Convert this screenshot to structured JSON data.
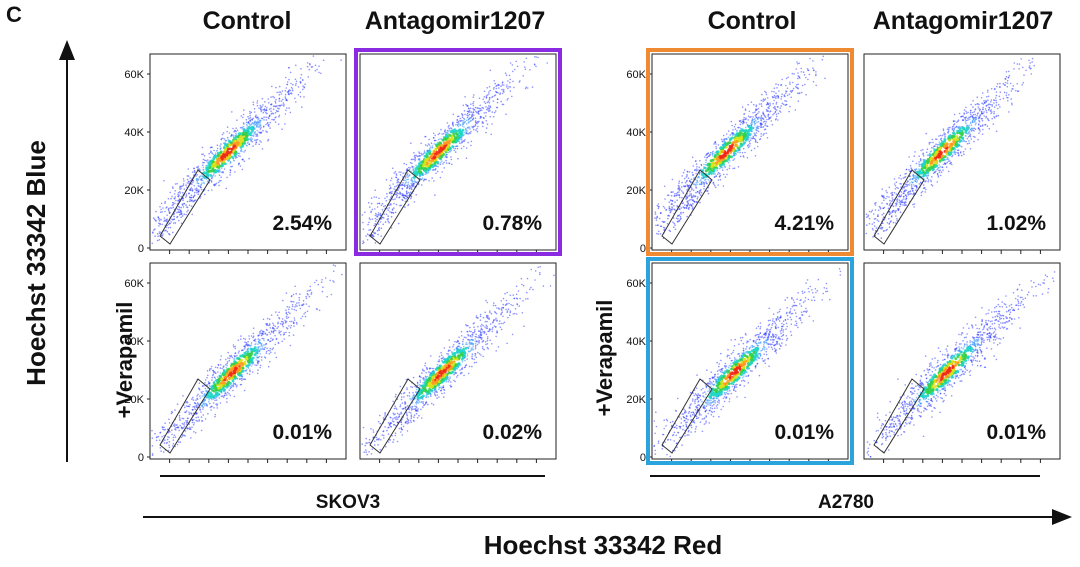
{
  "figure": {
    "panel_letter": "C",
    "y_axis_title": "Hoechst 33342 Blue",
    "x_axis_title": "Hoechst 33342 Red",
    "row_label": "+Verapamil",
    "colors": {
      "purple": "#8a2be2",
      "orange": "#ef8a33",
      "blue": "#2ba3dc"
    }
  },
  "chart_data": [
    {
      "type": "scatter",
      "cell_line": "SKOV3",
      "column_headers": [
        "Control",
        "Antagomir1207"
      ],
      "y_ticks": [
        "60K",
        "40K",
        "20K",
        "0"
      ],
      "ylim": [
        0,
        65000
      ],
      "panels": [
        {
          "row": "top",
          "condition": "Control",
          "verapamil": false,
          "side_population": "2.54%",
          "highlight": ""
        },
        {
          "row": "top",
          "condition": "Antagomir1207",
          "verapamil": false,
          "side_population": "0.78%",
          "highlight": "purple"
        },
        {
          "row": "bottom",
          "condition": "Control",
          "verapamil": true,
          "side_population": "0.01%",
          "highlight": ""
        },
        {
          "row": "bottom",
          "condition": "Antagomir1207",
          "verapamil": true,
          "side_population": "0.02%",
          "highlight": ""
        }
      ]
    },
    {
      "type": "scatter",
      "cell_line": "A2780",
      "column_headers": [
        "Control",
        "Antagomir1207"
      ],
      "y_ticks": [
        "60K",
        "40K",
        "20K",
        "0"
      ],
      "ylim": [
        0,
        65000
      ],
      "panels": [
        {
          "row": "top",
          "condition": "Control",
          "verapamil": false,
          "side_population": "4.21%",
          "highlight": "orange"
        },
        {
          "row": "top",
          "condition": "Antagomir1207",
          "verapamil": false,
          "side_population": "1.02%",
          "highlight": ""
        },
        {
          "row": "bottom",
          "condition": "Control",
          "verapamil": true,
          "side_population": "0.01%",
          "highlight": "blue"
        },
        {
          "row": "bottom",
          "condition": "Antagomir1207",
          "verapamil": true,
          "side_population": "0.01%",
          "highlight": ""
        }
      ]
    }
  ]
}
